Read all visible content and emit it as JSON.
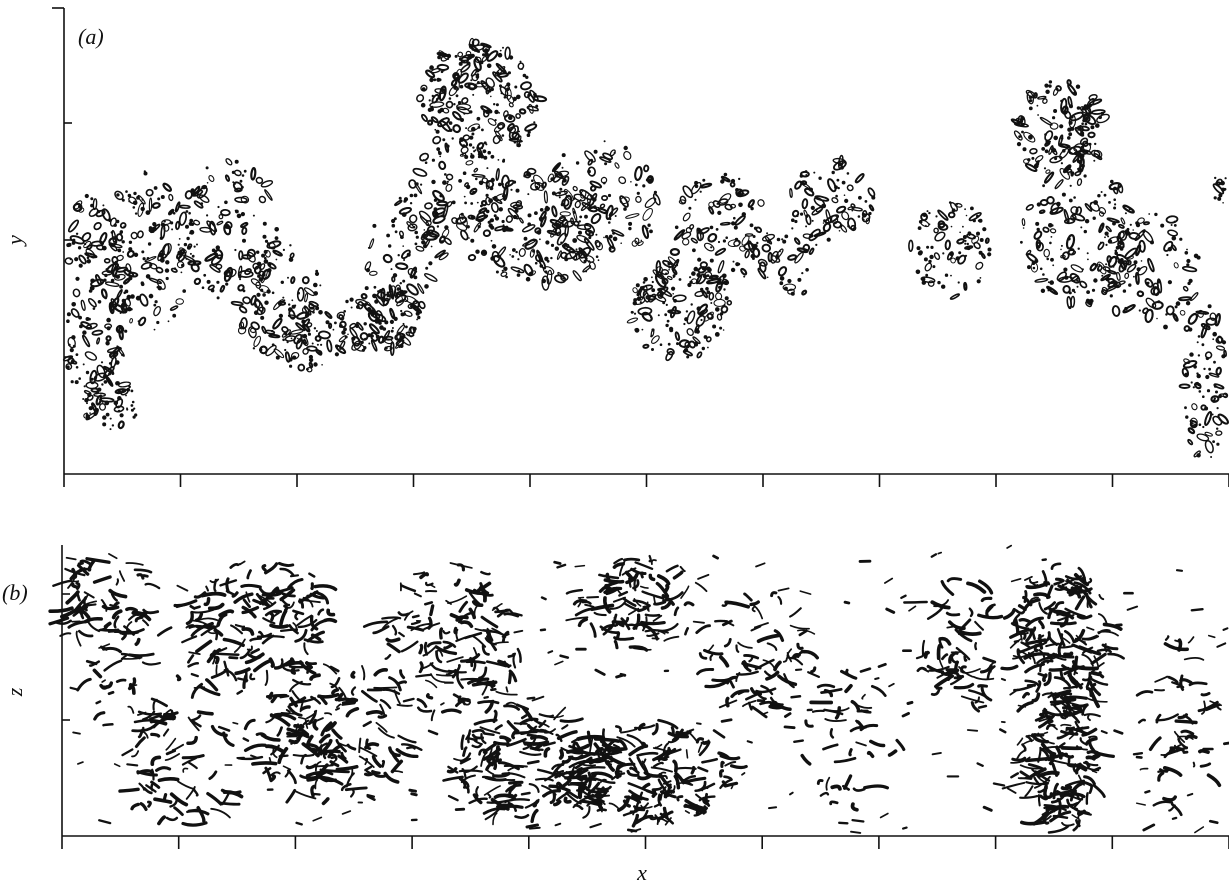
{
  "figure": {
    "panel_a": {
      "label": "(a)",
      "ylabel": "y"
    },
    "panel_b": {
      "label": "(b)",
      "ylabel": "z"
    },
    "xlabel": "x"
  },
  "colors": {
    "ink": "#111111",
    "background": "#ffffff"
  }
}
